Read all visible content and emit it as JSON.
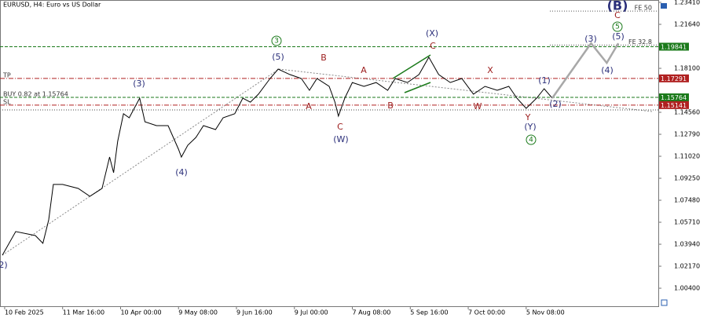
{
  "chart_data": {
    "type": "line",
    "title": "EURUSD, H4: Euro vs US Dollar",
    "x": [
      -0.4,
      1.9,
      5.3,
      6.6,
      7.6,
      8.4,
      10.0,
      12.7,
      14.7,
      16.8,
      18.1,
      18.8,
      19.5,
      20.5,
      21.5,
      23.3,
      24.2,
      26.2,
      28.2,
      30.0,
      30.5,
      31.6,
      33.0,
      34.3,
      36.4,
      37.7,
      39.7,
      41.1,
      42.4,
      43.8,
      45.8,
      47.2,
      49.2,
      51.2,
      52.6,
      53.9,
      56.0,
      57.0,
      57.6,
      58.7,
      60.0,
      62.0,
      64.1,
      66.1,
      67.4,
      69.5,
      71.5,
      73.2,
      74.9,
      76.9,
      78.9,
      80.9,
      82.9,
      85.0,
      87.0,
      88.4,
      90.0,
      91.8,
      93.1,
      94.5
    ],
    "values": [
      1.0306,
      1.0496,
      1.0464,
      1.0401,
      1.059,
      1.0875,
      1.0875,
      1.0843,
      1.078,
      1.0843,
      1.1096,
      1.097,
      1.1222,
      1.1444,
      1.1412,
      1.157,
      1.138,
      1.1349,
      1.1349,
      1.1159,
      1.1096,
      1.1191,
      1.1254,
      1.1349,
      1.1317,
      1.1412,
      1.1444,
      1.157,
      1.1538,
      1.1602,
      1.1728,
      1.1804,
      1.176,
      1.1728,
      1.1633,
      1.1728,
      1.1665,
      1.1538,
      1.1425,
      1.157,
      1.1696,
      1.1665,
      1.1696,
      1.1633,
      1.1728,
      1.1696,
      1.176,
      1.1899,
      1.176,
      1.1696,
      1.1728,
      1.1602,
      1.1665,
      1.1633,
      1.1665,
      1.157,
      1.1488,
      1.157,
      1.1646,
      1.157
    ],
    "color": "#000000",
    "projection": {
      "x": [
        94.5,
        101.2,
        103.9,
        105.9
      ],
      "values": [
        1.157,
        1.2012,
        1.1854,
        1.2012
      ],
      "color": "#a8a8a8"
    },
    "xlim": [
      -0.4,
      112.8
    ],
    "xticks": [
      {
        "value": 0,
        "label": "10 Feb 2025"
      },
      {
        "value": 10,
        "label": "11 Mar 16:00"
      },
      {
        "value": 20,
        "label": "10 Apr 00:00"
      },
      {
        "value": 30,
        "label": "9 May 08:00"
      },
      {
        "value": 40,
        "label": "9 Jun 16:00"
      },
      {
        "value": 50,
        "label": "9 Jul 00:00"
      },
      {
        "value": 60,
        "label": "7 Aug 08:00"
      },
      {
        "value": 70,
        "label": "5 Sep 16:00"
      },
      {
        "value": 80,
        "label": "7 Oct 00:00"
      },
      {
        "value": 90,
        "label": "5 Nov 08:00"
      }
    ],
    "ylim": [
      0.9895,
      1.236
    ],
    "yticks": [
      {
        "value": 1.2341,
        "label": "1.23410"
      },
      {
        "value": 1.2164,
        "label": "1.21640"
      },
      {
        "value": 1.181,
        "label": "1.18100"
      },
      {
        "value": 1.1456,
        "label": "1.14560"
      },
      {
        "value": 1.1279,
        "label": "1.12790"
      },
      {
        "value": 1.1102,
        "label": "1.11020"
      },
      {
        "value": 1.0925,
        "label": "1.09250"
      },
      {
        "value": 1.0748,
        "label": "1.07480"
      },
      {
        "value": 1.0571,
        "label": "1.05710"
      },
      {
        "value": 1.0394,
        "label": "1.03940"
      },
      {
        "value": 1.0217,
        "label": "1.02170"
      },
      {
        "value": 1.004,
        "label": "1.00400"
      }
    ],
    "levels": [
      {
        "value": 1.2271,
        "label": "FE 50",
        "color": "#555555",
        "style": "dotted"
      },
      {
        "value": 1.19841,
        "color": "#1b7a1b",
        "style": "dashed",
        "price_box": true
      },
      {
        "value": 1.1997,
        "label": "FE 32.8",
        "color": "#555555",
        "style": "dotted"
      },
      {
        "value": 1.17291,
        "label": "TP",
        "color": "#b02020",
        "style": "dashdot",
        "price_box": true
      },
      {
        "value": 1.15764,
        "label": "BUY 0.82 at 1.15764",
        "color": "#1b7a1b",
        "style": "dashed",
        "price_box": true
      },
      {
        "value": 1.15141,
        "label": "SL",
        "color": "#b02020",
        "style": "dashdot",
        "price_box": true
      }
    ],
    "annotations": [
      {
        "text": "2)",
        "color": "#2b2f7a"
      },
      {
        "text": "(3)",
        "color": "#2b2f7a"
      },
      {
        "text": "(4)",
        "color": "#2b2f7a"
      },
      {
        "text": "3",
        "color": "#1b7a1b",
        "circle": true
      },
      {
        "text": "(5)",
        "color": "#2b2f7a"
      },
      {
        "text": "B",
        "color": "#9b1b1b"
      },
      {
        "text": "A",
        "color": "#9b1b1b"
      },
      {
        "text": "C",
        "color": "#9b1b1b"
      },
      {
        "text": "(W)",
        "color": "#2b2f7a"
      },
      {
        "text": "A",
        "color": "#9b1b1b"
      },
      {
        "text": "B",
        "color": "#9b1b1b"
      },
      {
        "text": "(X)",
        "color": "#2b2f7a"
      },
      {
        "text": "C",
        "color": "#9b1b1b"
      },
      {
        "text": "X",
        "color": "#9b1b1b"
      },
      {
        "text": "W",
        "color": "#9b1b1b"
      },
      {
        "text": "Y",
        "color": "#9b1b1b"
      },
      {
        "text": "(Y)",
        "color": "#2b2f7a"
      },
      {
        "text": "4",
        "color": "#1b7a1b",
        "circle": true
      },
      {
        "text": "(1)",
        "color": "#2b2f7a"
      },
      {
        "text": "(2)",
        "color": "#2b2f7a"
      },
      {
        "text": "(3)",
        "color": "#2b2f7a"
      },
      {
        "text": "(4)",
        "color": "#2b2f7a"
      },
      {
        "text": "(5)",
        "color": "#2b2f7a"
      },
      {
        "text": "5",
        "color": "#1b7a1b",
        "circle": true
      },
      {
        "text": "C",
        "color": "#9b1b1b"
      },
      {
        "text": "(B)",
        "color": "#2b2f7a",
        "big": true
      }
    ]
  }
}
